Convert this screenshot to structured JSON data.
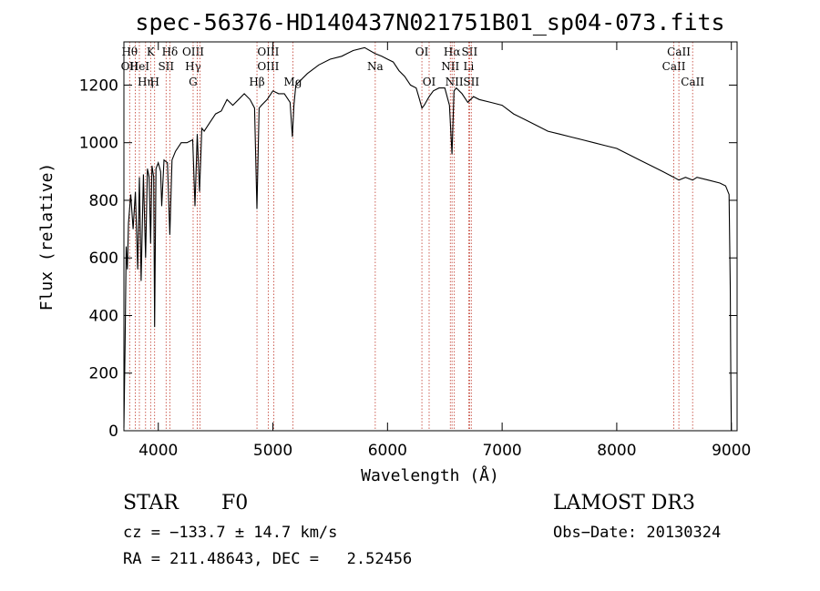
{
  "chart_data": {
    "type": "line",
    "title": "spec-56376-HD140437N021751B01_sp04-073.fits",
    "xlabel": "Wavelength (Å)",
    "ylabel": "Flux (relative)",
    "xlim": [
      3700,
      9050
    ],
    "ylim": [
      0,
      1350
    ],
    "xticks": [
      4000,
      5000,
      6000,
      7000,
      8000,
      9000
    ],
    "yticks": [
      0,
      200,
      400,
      600,
      800,
      1000,
      1200
    ],
    "grid": false,
    "series": [
      {
        "name": "flux",
        "x": [
          3700,
          3710,
          3720,
          3730,
          3740,
          3760,
          3780,
          3800,
          3820,
          3835,
          3850,
          3870,
          3889,
          3905,
          3920,
          3933,
          3945,
          3960,
          3968,
          3980,
          4000,
          4020,
          4030,
          4050,
          4080,
          4101,
          4120,
          4150,
          4200,
          4250,
          4300,
          4320,
          4340,
          4360,
          4380,
          4400,
          4450,
          4500,
          4550,
          4600,
          4650,
          4700,
          4750,
          4800,
          4840,
          4861,
          4880,
          4900,
          4950,
          5000,
          5050,
          5100,
          5150,
          5170,
          5183,
          5200,
          5300,
          5400,
          5500,
          5600,
          5700,
          5800,
          5890,
          5950,
          6000,
          6050,
          6100,
          6150,
          6200,
          6250,
          6280,
          6300,
          6320,
          6363,
          6400,
          6450,
          6500,
          6540,
          6563,
          6580,
          6600,
          6650,
          6700,
          6750,
          6800,
          6900,
          7000,
          7100,
          7200,
          7300,
          7400,
          7500,
          7600,
          7700,
          7800,
          7900,
          8000,
          8100,
          8200,
          8300,
          8400,
          8498,
          8542,
          8600,
          8662,
          8700,
          8800,
          8900,
          8950,
          8980,
          8990,
          8995,
          9000
        ],
        "y": [
          10,
          300,
          640,
          560,
          720,
          820,
          700,
          830,
          560,
          880,
          520,
          890,
          600,
          910,
          880,
          650,
          920,
          880,
          360,
          910,
          930,
          900,
          780,
          940,
          930,
          680,
          940,
          970,
          1000,
          1000,
          1010,
          780,
          1030,
          830,
          1050,
          1040,
          1070,
          1100,
          1110,
          1150,
          1130,
          1150,
          1170,
          1150,
          1120,
          770,
          1120,
          1130,
          1150,
          1180,
          1170,
          1170,
          1140,
          1020,
          1130,
          1200,
          1240,
          1270,
          1290,
          1300,
          1320,
          1330,
          1310,
          1300,
          1290,
          1280,
          1250,
          1230,
          1200,
          1190,
          1150,
          1120,
          1130,
          1160,
          1180,
          1190,
          1190,
          1130,
          960,
          1180,
          1190,
          1170,
          1140,
          1160,
          1150,
          1140,
          1130,
          1100,
          1080,
          1060,
          1040,
          1030,
          1020,
          1010,
          1000,
          990,
          980,
          960,
          940,
          920,
          900,
          880,
          870,
          880,
          870,
          880,
          870,
          860,
          850,
          820,
          500,
          200,
          0
        ]
      }
    ],
    "lines": [
      {
        "wl": 3750,
        "top": "Hθ",
        "mid": "OII"
      },
      {
        "wl": 3799
      },
      {
        "wl": 3835,
        "mid": "HeI"
      },
      {
        "wl": 3889,
        "bot": "Hη"
      },
      {
        "wl": 3933,
        "top": "K"
      },
      {
        "wl": 3968,
        "bot": "H"
      },
      {
        "wl": 4068,
        "mid": "SII"
      },
      {
        "wl": 4101,
        "top": "Hδ"
      },
      {
        "wl": 4304,
        "top": "OIII",
        "mid": "Hγ",
        "bot": "G"
      },
      {
        "wl": 4340
      },
      {
        "wl": 4363
      },
      {
        "wl": 4861,
        "bot": "Hβ"
      },
      {
        "wl": 4959,
        "top": "OIII",
        "mid": "OIII"
      },
      {
        "wl": 5007
      },
      {
        "wl": 5175,
        "bot": "Mg"
      },
      {
        "wl": 5893,
        "mid": "Na"
      },
      {
        "wl": 6300,
        "top": "OI"
      },
      {
        "wl": 6363,
        "bot": "OI"
      },
      {
        "wl": 6548,
        "mid": "NII"
      },
      {
        "wl": 6563,
        "top": "Hα"
      },
      {
        "wl": 6583,
        "bot": "NII"
      },
      {
        "wl": 6708,
        "mid": "Li"
      },
      {
        "wl": 6716,
        "top": "SII"
      },
      {
        "wl": 6731,
        "bot": "SII"
      },
      {
        "wl": 8498,
        "mid": "CaII"
      },
      {
        "wl": 8542,
        "top": "CaII"
      },
      {
        "wl": 8662,
        "bot": "CaII"
      }
    ]
  },
  "info": {
    "object_class": "STAR",
    "subclass": "F0",
    "survey": "LAMOST DR3",
    "cz": "cz = −133.7 ± 14.7 km/s",
    "obs_date": "Obs−Date: 20130324",
    "coords": "RA = 211.48643, DEC =   2.52456"
  }
}
